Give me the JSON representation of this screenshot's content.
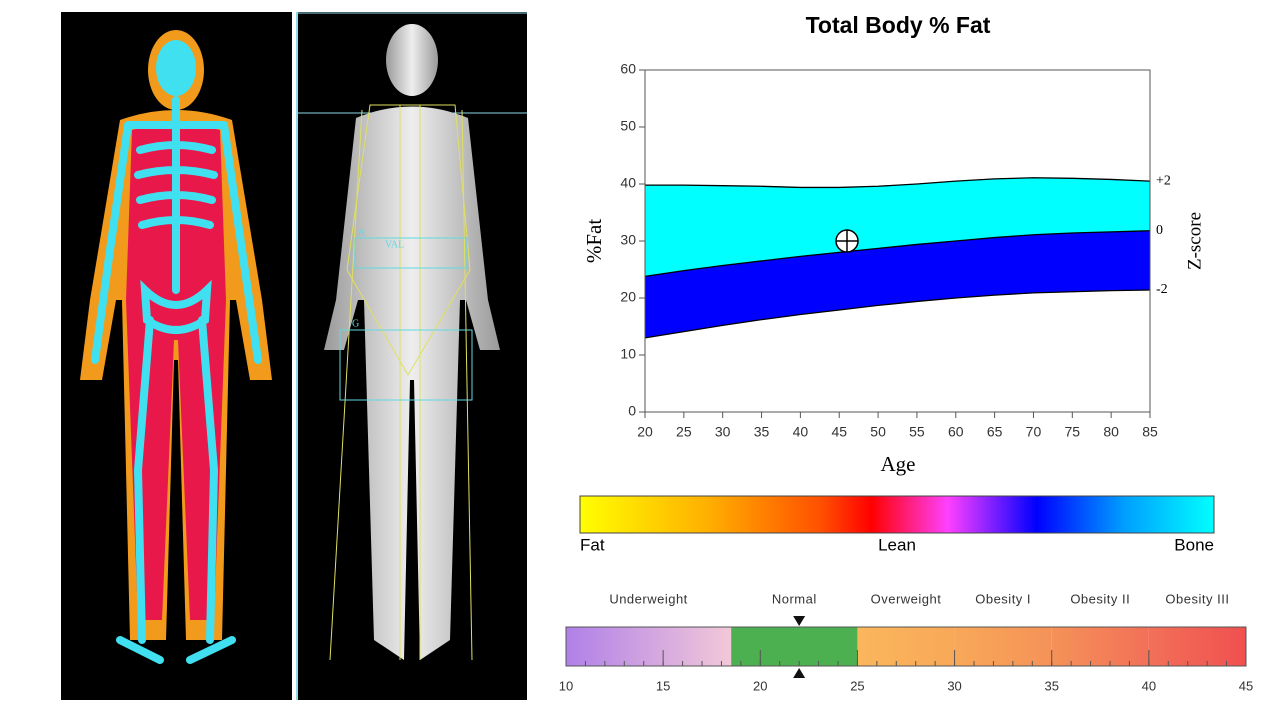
{
  "chart_data": {
    "type": "band",
    "title": "Total Body % Fat",
    "xlabel": "Age",
    "ylabel": "%Fat",
    "y2label": "Z-score",
    "x": [
      20,
      25,
      30,
      35,
      40,
      45,
      50,
      55,
      60,
      65,
      70,
      75,
      80,
      85
    ],
    "series": [
      {
        "name": "+2",
        "color": "#000000",
        "fill": "#00ffff",
        "values": [
          39.8,
          39.8,
          39.7,
          39.6,
          39.4,
          39.4,
          39.6,
          40.0,
          40.5,
          40.9,
          41.1,
          41.0,
          40.8,
          40.5
        ]
      },
      {
        "name": "0",
        "color": "#000000",
        "fill": "#0000ff",
        "values": [
          23.8,
          24.8,
          25.7,
          26.5,
          27.3,
          28.0,
          28.7,
          29.4,
          30.0,
          30.6,
          31.1,
          31.4,
          31.6,
          31.8
        ]
      },
      {
        "name": "-2",
        "color": "#000000",
        "values": [
          13.0,
          14.1,
          15.2,
          16.2,
          17.1,
          17.9,
          18.7,
          19.4,
          20.0,
          20.5,
          20.9,
          21.1,
          21.3,
          21.4
        ]
      }
    ],
    "point": {
      "x": 46,
      "y": 30
    },
    "xlim": [
      20,
      85
    ],
    "xticks": [
      20,
      25,
      30,
      35,
      40,
      45,
      50,
      55,
      60,
      65,
      70,
      75,
      80,
      85
    ],
    "ylim": [
      0,
      60
    ],
    "yticks": [
      0,
      10,
      20,
      30,
      40,
      50,
      60
    ]
  },
  "color_legend": {
    "labels": [
      "Fat",
      "Lean",
      "Bone"
    ],
    "stops": [
      {
        "offset": 0,
        "color": "#ffff00"
      },
      {
        "offset": 20,
        "color": "#ffb000"
      },
      {
        "offset": 38,
        "color": "#ff5000"
      },
      {
        "offset": 46,
        "color": "#ff0000"
      },
      {
        "offset": 58,
        "color": "#ff40ff"
      },
      {
        "offset": 72,
        "color": "#0000ff"
      },
      {
        "offset": 86,
        "color": "#00a0ff"
      },
      {
        "offset": 100,
        "color": "#00ffff"
      }
    ]
  },
  "bmi_scale": {
    "range": [
      10,
      45
    ],
    "ticks": [
      10,
      15,
      20,
      25,
      30,
      35,
      40,
      45
    ],
    "marker": 22,
    "categories": [
      {
        "label": "Underweight",
        "from": 10,
        "to": 18.5,
        "colors": [
          "#b080e8",
          "#f2c8d8"
        ]
      },
      {
        "label": "Normal",
        "from": 18.5,
        "to": 25,
        "colors": [
          "#4cb050",
          "#4cb050"
        ]
      },
      {
        "label": "Overweight",
        "from": 25,
        "to": 30,
        "colors": [
          "#fbb65c",
          "#f8a858"
        ]
      },
      {
        "label": "Obesity I",
        "from": 30,
        "to": 35,
        "colors": [
          "#f8a858",
          "#f59258"
        ]
      },
      {
        "label": "Obesity II",
        "from": 35,
        "to": 40,
        "colors": [
          "#f59258",
          "#f27058"
        ]
      },
      {
        "label": "Obesity III",
        "from": 40,
        "to": 45,
        "colors": [
          "#f27058",
          "#f05050"
        ]
      }
    ]
  },
  "image_labels": [
    "A",
    "VAL",
    "G"
  ]
}
